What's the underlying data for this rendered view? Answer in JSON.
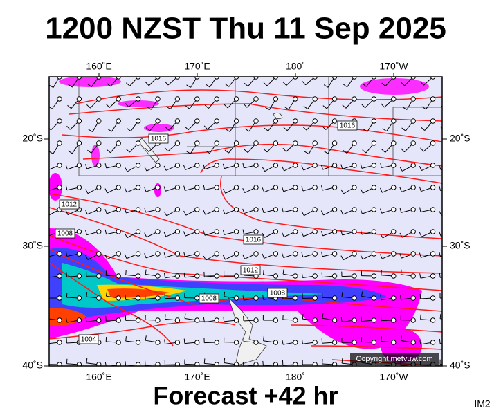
{
  "title": "1200 NZST Thu 11 Sep 2025",
  "longitude_labels_top": [
    "160˚E",
    "170˚E",
    "180˚",
    "170˚W"
  ],
  "longitude_labels_bottom": [
    "160˚E",
    "170˚E",
    "180˚",
    "170˚W"
  ],
  "latitude_labels_left": [
    "20˚S",
    "30˚S",
    "40˚S"
  ],
  "latitude_labels_right": [
    "20˚S",
    "30˚S",
    "40˚S"
  ],
  "isobar_labels": [
    "1016",
    "1016",
    "1012",
    "1008",
    "1016",
    "1012",
    "1008",
    "1008",
    "1004"
  ],
  "copyright": "Copyright metvuw.com",
  "footer": "Forecast +42 hr",
  "image_id": "IM2"
}
